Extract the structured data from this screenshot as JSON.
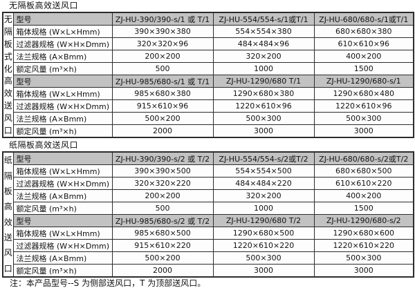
{
  "colors": {
    "header_bg": "#c2c2c2",
    "border": "#2b2b2b",
    "cell_bg": "#fdfdfd",
    "text": "#111111"
  },
  "sections": [
    {
      "title": "无隔板高效送风口",
      "side_label": "无隔板式化高效送风口",
      "rows": [
        {
          "header": true,
          "label": "型号",
          "cells": [
            "ZJ-HU-390/390-s/1 或 T/1",
            "ZJ-HU-554/554-s/1或T/1",
            "ZJ-HU-680/680-s/1或T/1"
          ]
        },
        {
          "header": false,
          "label": "箱体规格 (W×L×Hmm)",
          "cells": [
            "390×390×380",
            "554×554×380",
            "680×680×380"
          ]
        },
        {
          "header": false,
          "label": "过滤器规格 (W×H×Dmm)",
          "cells": [
            "320×320×96",
            "484×484×96",
            "610×610×96"
          ]
        },
        {
          "header": false,
          "label": "法兰规格 (A×Bmm)",
          "cells": [
            "200×200",
            "320×200",
            "400×200"
          ]
        },
        {
          "header": false,
          "label": "额定风量 (m³×h)",
          "cells": [
            "500",
            "1000",
            "1500"
          ]
        },
        {
          "header": true,
          "label": "型号",
          "cells": [
            "ZJ-HU-985/680-s/1 或 T/1",
            "ZJ-HU-1290/680  T/1",
            "ZJ-HU-1290/680-s/1"
          ]
        },
        {
          "header": false,
          "label": "箱体规格 (W×L×Hmm)",
          "cells": [
            "985×680×380",
            "1290×680×380",
            "1290×680×480"
          ]
        },
        {
          "header": false,
          "label": "过滤器规格 (W×H×Dmm)",
          "cells": [
            "915×610×96",
            "1220×610×96",
            "1220×610×96"
          ]
        },
        {
          "header": false,
          "label": "法兰规格 (A×Bmm)",
          "cells": [
            "500×200",
            "500×300",
            "500×300"
          ]
        },
        {
          "header": false,
          "label": "额定风量 (m³×h)",
          "cells": [
            "2000",
            "3000",
            "3000"
          ]
        }
      ]
    },
    {
      "title": "纸隔板高效送风口",
      "side_label": "纸隔板高效送风口",
      "rows": [
        {
          "header": true,
          "label": "型号",
          "cells": [
            "ZJ-HU-390/390-s/2 或 T/2",
            "ZJ-HU-554/554-s/2或T/2",
            "ZJ-HU-680/680-s/2或T/2"
          ]
        },
        {
          "header": false,
          "label": "箱体规格 (W×L×Hmm)",
          "cells": [
            "390×390×500",
            "554×554×500",
            "680×680×500"
          ]
        },
        {
          "header": false,
          "label": "过滤器规格 (W×H×Dmm)",
          "cells": [
            "320×320×220",
            "484×484×220",
            "610×610×220"
          ]
        },
        {
          "header": false,
          "label": "法兰规格 (A×Bmm)",
          "cells": [
            "200×200",
            "320×200",
            "400×200"
          ]
        },
        {
          "header": false,
          "label": "额定风量 (m³×h)",
          "cells": [
            "500",
            "1000",
            "1500"
          ]
        },
        {
          "header": true,
          "label": "型号",
          "cells": [
            "ZJ-HU-985/680-s/2 或 T/2",
            "ZJ-HU-1290/680  T/2",
            "ZJ-HU-1290/680-s/2"
          ]
        },
        {
          "header": false,
          "label": "箱体规格 (W×L×Hmm)",
          "cells": [
            "985×680×500",
            "1290×680×500",
            "1290×680×600"
          ]
        },
        {
          "header": false,
          "label": "过滤器规格 (W×H×Dmm)",
          "cells": [
            "915×610×220",
            "1220×610×220",
            "1220×610×220"
          ]
        },
        {
          "header": false,
          "label": "法兰规格 (A×Bmm)",
          "cells": [
            "500×200",
            "500×300",
            "500×300"
          ]
        },
        {
          "header": false,
          "label": "额定风量 (m³×h)",
          "cells": [
            "2000",
            "3000",
            "3000"
          ]
        }
      ]
    }
  ],
  "note": "注：本产品型号--S 为侧部送风口，T 为顶部送风口。"
}
